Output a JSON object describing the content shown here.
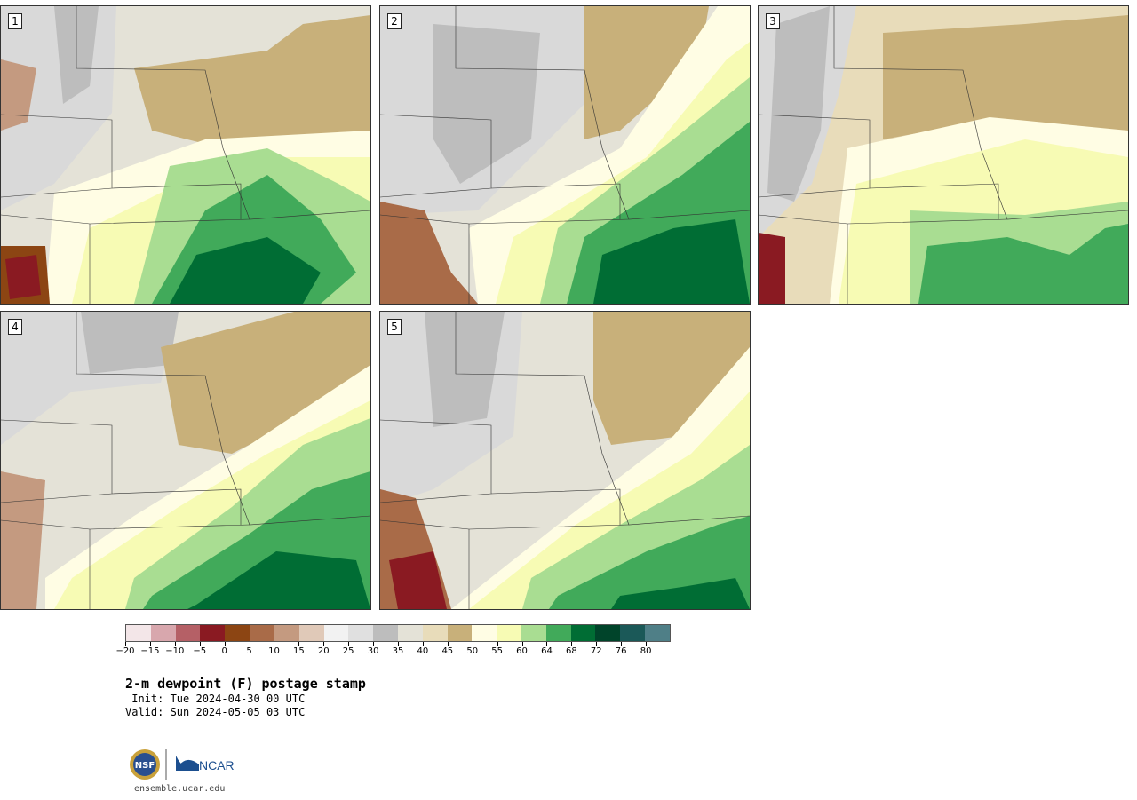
{
  "panels": [
    {
      "label": "1"
    },
    {
      "label": "2"
    },
    {
      "label": "3"
    },
    {
      "label": "4"
    },
    {
      "label": "5"
    }
  ],
  "colorbar": {
    "colors": [
      "#f3e6e8",
      "#d8a7ad",
      "#b56066",
      "#8a1a22",
      "#8c4513",
      "#a96b48",
      "#c49a80",
      "#e0c9b8",
      "#f2f2f2",
      "#e0e0e0",
      "#bdbdbd",
      "#e4e2d7",
      "#e8dcba",
      "#c8b07a",
      "#fffde4",
      "#f7fbb4",
      "#a9dd92",
      "#41aa5a",
      "#006d34",
      "#00442a",
      "#1b5958",
      "#4f7f87"
    ],
    "tick_labels": [
      "−20",
      "−15",
      "−10",
      "−5",
      "0",
      "5",
      "10",
      "15",
      "20",
      "25",
      "30",
      "35",
      "40",
      "45",
      "50",
      "55",
      "60",
      "64",
      "68",
      "72",
      "76",
      "80"
    ]
  },
  "title": "2-m dewpoint (F) postage stamp",
  "init": " Init: Tue 2024-04-30 00 UTC",
  "valid": "Valid: Sun 2024-05-05 03 UTC",
  "logos": {
    "nsf": "NSF",
    "ncar": "NCAR"
  },
  "site": "ensemble.ucar.edu"
}
